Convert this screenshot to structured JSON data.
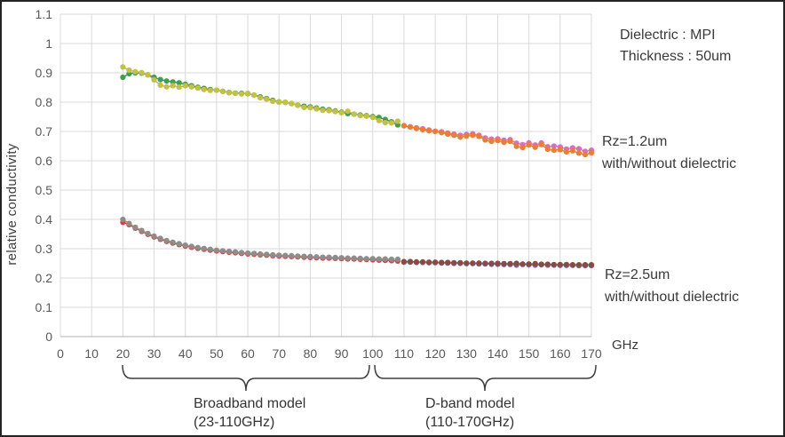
{
  "axis": {
    "y_title": "relative conductivity"
  },
  "right_annotations": {
    "dielectric_line1": "Dielectric : MPI",
    "dielectric_line2": "Thickness : 50um",
    "rz12_line1": "Rz=1.2um",
    "rz12_line2": "with/without dielectric",
    "rz25_line1": "Rz=2.5um",
    "rz25_line2": "with/without dielectric",
    "x_unit_label": "GHz"
  },
  "band_labels": {
    "broadband_line1": "Broadband model",
    "broadband_line2": "(23-110GHz)",
    "dband_line1": "D-band model",
    "dband_line2": "(110-170GHz)"
  },
  "chart_data": {
    "type": "line",
    "title": "",
    "xlabel": "GHz",
    "ylabel": "relative conductivity",
    "xlim": [
      0,
      170
    ],
    "ylim": [
      0,
      1.1
    ],
    "grid": true,
    "grid_color": "#d9d9d9",
    "axis_line_color": "#b0b0b0",
    "tick_color": "#595959",
    "x_ticks": [
      0,
      10,
      20,
      30,
      40,
      50,
      60,
      70,
      80,
      90,
      100,
      110,
      120,
      130,
      140,
      150,
      160,
      170
    ],
    "y_ticks": [
      0,
      0.1,
      0.2,
      0.3,
      0.4,
      0.5,
      0.6,
      0.7,
      0.8,
      0.9,
      1,
      1.1
    ],
    "y_tick_labels": [
      "0",
      "0.1",
      "0.2",
      "0.3",
      "0.4",
      "0.5",
      "0.6",
      "0.7",
      "0.8",
      "0.9",
      "1",
      "1.1"
    ],
    "series": [
      {
        "id": "rz12-broadband-1",
        "name": "Rz=1.2um (Broadband model 23-110GHz)",
        "marker_color": "#3fa047",
        "line_color": "#4472c4",
        "x": [
          20,
          22,
          24,
          26,
          28,
          30,
          32,
          34,
          36,
          38,
          40,
          42,
          44,
          46,
          48,
          50,
          52,
          54,
          56,
          58,
          60,
          62,
          64,
          66,
          68,
          70,
          72,
          74,
          76,
          78,
          80,
          82,
          84,
          86,
          88,
          90,
          92,
          94,
          96,
          98,
          100,
          102,
          104,
          106,
          108
        ],
        "y": [
          0.885,
          0.897,
          0.9,
          0.899,
          0.893,
          0.885,
          0.877,
          0.872,
          0.869,
          0.866,
          0.861,
          0.856,
          0.851,
          0.847,
          0.843,
          0.841,
          0.837,
          0.833,
          0.831,
          0.83,
          0.829,
          0.824,
          0.818,
          0.812,
          0.806,
          0.801,
          0.799,
          0.795,
          0.79,
          0.786,
          0.784,
          0.78,
          0.776,
          0.774,
          0.77,
          0.766,
          0.761,
          0.759,
          0.756,
          0.754,
          0.751,
          0.748,
          0.741,
          0.733,
          0.722
        ]
      },
      {
        "id": "rz12-broadband-2",
        "name": "Rz=1.2um (Broadband model 23-110GHz)",
        "marker_color": "#c3c13d",
        "line_color": "#a8a8a8",
        "x": [
          20,
          22,
          24,
          26,
          28,
          30,
          32,
          34,
          36,
          38,
          40,
          42,
          44,
          46,
          48,
          50,
          52,
          54,
          56,
          58,
          60,
          62,
          64,
          66,
          68,
          70,
          72,
          74,
          76,
          78,
          80,
          82,
          84,
          86,
          88,
          90,
          92,
          94,
          96,
          98,
          100,
          102,
          104,
          106,
          108
        ],
        "y": [
          0.92,
          0.909,
          0.904,
          0.901,
          0.894,
          0.876,
          0.858,
          0.852,
          0.856,
          0.851,
          0.856,
          0.852,
          0.848,
          0.843,
          0.84,
          0.841,
          0.836,
          0.832,
          0.83,
          0.828,
          0.83,
          0.824,
          0.815,
          0.81,
          0.803,
          0.8,
          0.8,
          0.795,
          0.789,
          0.782,
          0.781,
          0.777,
          0.772,
          0.771,
          0.768,
          0.764,
          0.769,
          0.759,
          0.754,
          0.752,
          0.748,
          0.737,
          0.73,
          0.729,
          0.735
        ]
      },
      {
        "id": "rz12-dband-1",
        "name": "Rz=1.2um (D-band model 110-170GHz)",
        "marker_color": "#d66fc4",
        "line_color": "#d98b63",
        "x": [
          110,
          112,
          114,
          116,
          118,
          120,
          122,
          124,
          126,
          128,
          130,
          132,
          134,
          136,
          138,
          140,
          142,
          144,
          146,
          148,
          150,
          152,
          154,
          156,
          158,
          160,
          162,
          164,
          166,
          168,
          170
        ],
        "y": [
          0.72,
          0.716,
          0.712,
          0.709,
          0.705,
          0.701,
          0.699,
          0.695,
          0.691,
          0.687,
          0.69,
          0.692,
          0.687,
          0.678,
          0.674,
          0.675,
          0.67,
          0.672,
          0.66,
          0.655,
          0.661,
          0.654,
          0.661,
          0.648,
          0.65,
          0.647,
          0.64,
          0.644,
          0.641,
          0.632,
          0.636
        ]
      },
      {
        "id": "rz12-dband-2",
        "name": "Rz=1.2um (D-band model 110-170GHz)",
        "marker_color": "#ed7d31",
        "line_color": "#ed7d31",
        "x": [
          110,
          112,
          114,
          116,
          118,
          120,
          122,
          124,
          126,
          128,
          130,
          132,
          134,
          136,
          138,
          140,
          142,
          144,
          146,
          148,
          150,
          152,
          154,
          156,
          158,
          160,
          162,
          164,
          166,
          168,
          170
        ],
        "y": [
          0.719,
          0.715,
          0.71,
          0.706,
          0.702,
          0.7,
          0.696,
          0.691,
          0.687,
          0.681,
          0.684,
          0.687,
          0.683,
          0.671,
          0.666,
          0.669,
          0.663,
          0.666,
          0.649,
          0.645,
          0.654,
          0.646,
          0.655,
          0.639,
          0.636,
          0.638,
          0.63,
          0.634,
          0.626,
          0.621,
          0.627
        ]
      },
      {
        "id": "rz25-broadband-1",
        "name": "Rz=2.5um (Broadband model 23-110GHz)",
        "marker_color": "#e03c38",
        "line_color": "#4472c4",
        "x": [
          20,
          22,
          24,
          26,
          28,
          30,
          32,
          34,
          36,
          38,
          40,
          42,
          44,
          46,
          48,
          50,
          52,
          54,
          56,
          58,
          60,
          62,
          64,
          66,
          68,
          70,
          72,
          74,
          76,
          78,
          80,
          82,
          84,
          86,
          88,
          90,
          92,
          94,
          96,
          98,
          100,
          102,
          104,
          106,
          108
        ],
        "y": [
          0.39,
          0.382,
          0.37,
          0.359,
          0.349,
          0.34,
          0.332,
          0.325,
          0.319,
          0.314,
          0.309,
          0.305,
          0.301,
          0.298,
          0.295,
          0.292,
          0.29,
          0.288,
          0.286,
          0.284,
          0.282,
          0.281,
          0.279,
          0.278,
          0.276,
          0.275,
          0.274,
          0.273,
          0.272,
          0.271,
          0.27,
          0.269,
          0.268,
          0.268,
          0.267,
          0.266,
          0.265,
          0.265,
          0.264,
          0.263,
          0.262,
          0.261,
          0.26,
          0.259,
          0.258
        ]
      },
      {
        "id": "rz25-broadband-2",
        "name": "Rz=2.5um (Broadband model 23-110GHz)",
        "marker_color": "#8d8d8d",
        "line_color": "#ed7d31",
        "x": [
          20,
          22,
          24,
          26,
          28,
          30,
          32,
          34,
          36,
          38,
          40,
          42,
          44,
          46,
          48,
          50,
          52,
          54,
          56,
          58,
          60,
          62,
          64,
          66,
          68,
          70,
          72,
          74,
          76,
          78,
          80,
          82,
          84,
          86,
          88,
          90,
          92,
          94,
          96,
          98,
          100,
          102,
          104,
          106,
          108
        ],
        "y": [
          0.4,
          0.386,
          0.373,
          0.362,
          0.352,
          0.343,
          0.335,
          0.328,
          0.322,
          0.317,
          0.312,
          0.308,
          0.304,
          0.301,
          0.298,
          0.295,
          0.293,
          0.291,
          0.289,
          0.287,
          0.285,
          0.284,
          0.282,
          0.281,
          0.279,
          0.278,
          0.277,
          0.276,
          0.275,
          0.274,
          0.273,
          0.272,
          0.271,
          0.271,
          0.27,
          0.269,
          0.268,
          0.268,
          0.267,
          0.266,
          0.266,
          0.265,
          0.265,
          0.264,
          0.264
        ]
      },
      {
        "id": "rz25-dband-1",
        "name": "Rz=2.5um (D-band model 110-170GHz)",
        "marker_color": "#7e60a8",
        "line_color": "#62a84e",
        "x": [
          110,
          112,
          114,
          116,
          118,
          120,
          122,
          124,
          126,
          128,
          130,
          132,
          134,
          136,
          138,
          140,
          142,
          144,
          146,
          148,
          150,
          152,
          154,
          156,
          158,
          160,
          162,
          164,
          166,
          168,
          170
        ],
        "y": [
          0.254,
          0.254,
          0.253,
          0.253,
          0.252,
          0.252,
          0.251,
          0.251,
          0.25,
          0.25,
          0.249,
          0.249,
          0.248,
          0.248,
          0.247,
          0.247,
          0.246,
          0.246,
          0.244,
          0.246,
          0.245,
          0.244,
          0.245,
          0.244,
          0.244,
          0.243,
          0.243,
          0.243,
          0.242,
          0.242,
          0.242
        ]
      },
      {
        "id": "rz25-dband-2",
        "name": "Rz=2.5um (D-band model 110-170GHz)",
        "marker_color": "#8a4a3f",
        "line_color": "#4472c4",
        "x": [
          110,
          112,
          114,
          116,
          118,
          120,
          122,
          124,
          126,
          128,
          130,
          132,
          134,
          136,
          138,
          140,
          142,
          144,
          146,
          148,
          150,
          152,
          154,
          156,
          158,
          160,
          162,
          164,
          166,
          168,
          170
        ],
        "y": [
          0.256,
          0.256,
          0.255,
          0.255,
          0.254,
          0.254,
          0.253,
          0.253,
          0.252,
          0.252,
          0.251,
          0.251,
          0.251,
          0.25,
          0.25,
          0.25,
          0.249,
          0.249,
          0.25,
          0.248,
          0.248,
          0.249,
          0.247,
          0.247,
          0.246,
          0.246,
          0.246,
          0.245,
          0.245,
          0.245,
          0.245
        ]
      }
    ],
    "annotations_note_colors": {
      "annotation_text": "#3a3a3a",
      "brace_stroke": "#3d3d3d"
    }
  }
}
